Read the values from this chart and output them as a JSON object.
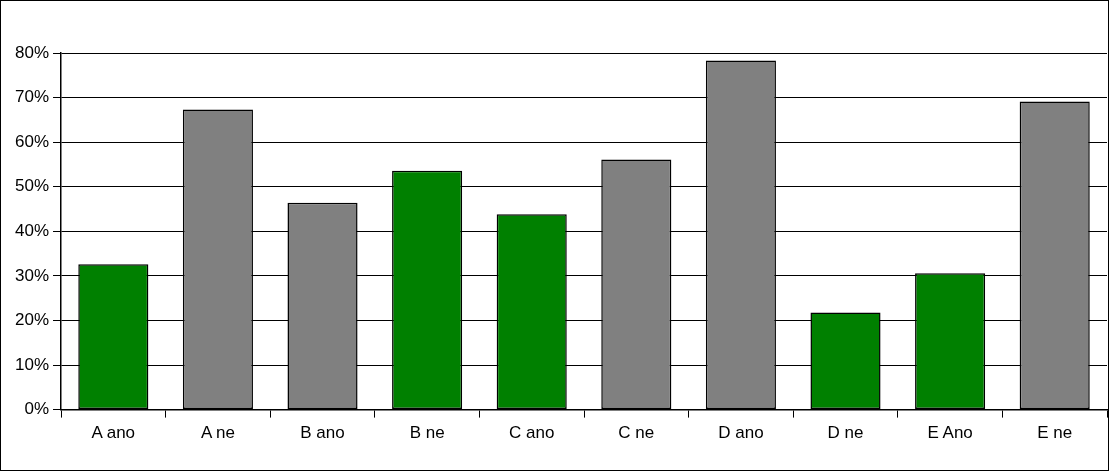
{
  "chart_data": {
    "type": "bar",
    "categories": [
      "A ano",
      "A ne",
      "B ano",
      "B ne",
      "C ano",
      "C ne",
      "D ano",
      "D ne",
      "E Ano",
      "E ne"
    ],
    "values": [
      32.6,
      67.3,
      46.4,
      53.6,
      43.8,
      56.1,
      78.3,
      21.8,
      30.6,
      69.1
    ],
    "colors": [
      "#008000",
      "#808080",
      "#808080",
      "#008000",
      "#008000",
      "#808080",
      "#808080",
      "#008000",
      "#008000",
      "#808080"
    ],
    "ylim": [
      0,
      80
    ],
    "yticks": [
      {
        "value": 0,
        "label": "0%"
      },
      {
        "value": 10,
        "label": "10%"
      },
      {
        "value": 20,
        "label": "20%"
      },
      {
        "value": 30,
        "label": "30%"
      },
      {
        "value": 40,
        "label": "40%"
      },
      {
        "value": 50,
        "label": "50%"
      },
      {
        "value": 60,
        "label": "60%"
      },
      {
        "value": 70,
        "label": "70%"
      },
      {
        "value": 80,
        "label": "80%"
      }
    ],
    "grid": "y",
    "legend": false
  }
}
